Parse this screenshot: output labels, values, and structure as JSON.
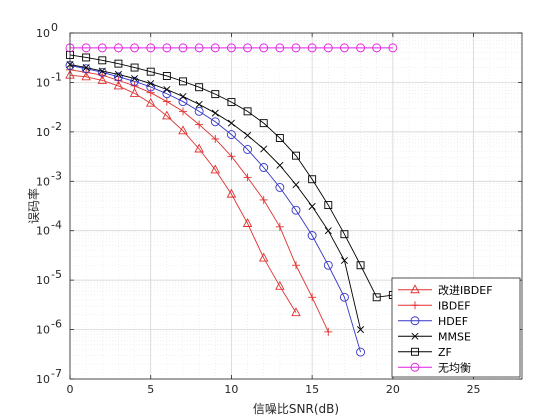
{
  "chart_data": {
    "type": "line",
    "xlabel": "信噪比SNR(dB)",
    "ylabel": "误码率",
    "x_scale": "linear",
    "y_scale": "log",
    "xlim": [
      0,
      28
    ],
    "ylim": [
      1e-07,
      1
    ],
    "x_ticks": [
      0,
      5,
      10,
      15,
      20,
      25
    ],
    "x_tick_labels": [
      "0",
      "5",
      "10",
      "15",
      "20",
      "25"
    ],
    "y_ticks": [
      1e-07,
      1e-06,
      1e-05,
      0.0001,
      0.001,
      0.01,
      0.1,
      1
    ],
    "y_tick_labels": [
      {
        "base": "10",
        "exp": "-7"
      },
      {
        "base": "10",
        "exp": "-6"
      },
      {
        "base": "10",
        "exp": "-5"
      },
      {
        "base": "10",
        "exp": "-4"
      },
      {
        "base": "10",
        "exp": "-3"
      },
      {
        "base": "10",
        "exp": "-2"
      },
      {
        "base": "10",
        "exp": "-1"
      },
      {
        "base": "10",
        "exp": "0"
      }
    ],
    "grid": true,
    "minor_grid": true,
    "legend_position": "bottom-right",
    "series": [
      {
        "name": "改进IBDEF",
        "color": "#e03030",
        "marker": "triangle",
        "x": [
          0,
          1,
          2,
          3,
          4,
          5,
          6,
          7,
          8,
          9,
          10,
          11,
          12,
          13,
          14
        ],
        "y": [
          0.14,
          0.13,
          0.11,
          0.085,
          0.06,
          0.038,
          0.021,
          0.0105,
          0.0045,
          0.0017,
          0.00055,
          0.00014,
          2.8e-05,
          7.5e-06,
          2.2e-06
        ]
      },
      {
        "name": "IBDEF",
        "color": "#e03030",
        "marker": "plus",
        "x": [
          0,
          1,
          2,
          3,
          4,
          5,
          6,
          7,
          8,
          9,
          10,
          11,
          12,
          13,
          14,
          15,
          16
        ],
        "y": [
          0.18,
          0.16,
          0.14,
          0.11,
          0.085,
          0.062,
          0.041,
          0.026,
          0.014,
          0.0072,
          0.0032,
          0.0012,
          0.00042,
          0.00012,
          2e-05,
          4.5e-06,
          9e-07
        ]
      },
      {
        "name": "HDEF",
        "color": "#3535c8",
        "marker": "circle",
        "x": [
          0,
          1,
          2,
          3,
          4,
          5,
          6,
          7,
          8,
          9,
          10,
          11,
          12,
          13,
          14,
          15,
          16,
          17,
          18
        ],
        "y": [
          0.22,
          0.19,
          0.16,
          0.13,
          0.105,
          0.081,
          0.059,
          0.041,
          0.026,
          0.016,
          0.0088,
          0.0044,
          0.0019,
          0.00075,
          0.00026,
          8e-05,
          2e-05,
          4.5e-06,
          3.5e-07
        ]
      },
      {
        "name": "MMSE",
        "color": "#000000",
        "marker": "x",
        "x": [
          0,
          1,
          2,
          3,
          4,
          5,
          6,
          7,
          8,
          9,
          10,
          11,
          12,
          13,
          14,
          15,
          16,
          17,
          18
        ],
        "y": [
          0.23,
          0.2,
          0.17,
          0.145,
          0.12,
          0.095,
          0.072,
          0.052,
          0.036,
          0.024,
          0.015,
          0.0085,
          0.0045,
          0.0021,
          0.00085,
          0.00031,
          0.0001,
          2.5e-05,
          1e-06
        ]
      },
      {
        "name": "ZF",
        "color": "#000000",
        "marker": "square",
        "x": [
          0,
          1,
          2,
          3,
          4,
          5,
          6,
          7,
          8,
          9,
          10,
          11,
          12,
          13,
          14,
          15,
          16,
          17,
          18,
          19,
          20
        ],
        "y": [
          0.36,
          0.32,
          0.28,
          0.24,
          0.2,
          0.165,
          0.135,
          0.105,
          0.08,
          0.058,
          0.04,
          0.026,
          0.015,
          0.0075,
          0.0033,
          0.0011,
          0.00033,
          8.5e-05,
          2e-05,
          4.5e-06,
          5e-06
        ]
      },
      {
        "name": "无均衡",
        "color": "#e020e0",
        "marker": "circle",
        "x": [
          0,
          1,
          2,
          3,
          4,
          5,
          6,
          7,
          8,
          9,
          10,
          11,
          12,
          13,
          14,
          15,
          16,
          17,
          18,
          19,
          20
        ],
        "y": [
          0.5,
          0.5,
          0.5,
          0.5,
          0.5,
          0.5,
          0.5,
          0.5,
          0.5,
          0.5,
          0.5,
          0.5,
          0.5,
          0.5,
          0.5,
          0.5,
          0.5,
          0.5,
          0.5,
          0.5,
          0.5
        ]
      }
    ]
  }
}
